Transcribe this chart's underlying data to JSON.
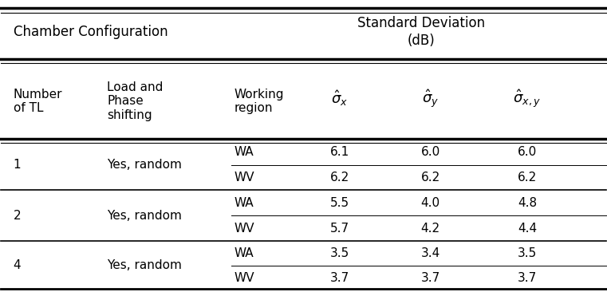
{
  "title_left": "Chamber Configuration",
  "title_right": "Standard Deviation\n(dB)",
  "col_headers_0": "Number\nof TL",
  "col_headers_1": "Load and\nPhase\nshifting",
  "col_headers_2": "Working\nregion",
  "col_headers_3": "$\\hat{\\sigma}_x$",
  "col_headers_4": "$\\hat{\\sigma}_y$",
  "col_headers_5": "$\\hat{\\sigma}_{x,y}$",
  "rows": [
    [
      "1",
      "Yes, random",
      "WA",
      "6.1",
      "6.0",
      "6.0"
    ],
    [
      "1",
      "Yes, random",
      "WV",
      "6.2",
      "6.2",
      "6.2"
    ],
    [
      "2",
      "Yes, random",
      "WA",
      "5.5",
      "4.0",
      "4.8"
    ],
    [
      "2",
      "Yes, random",
      "WV",
      "5.7",
      "4.2",
      "4.4"
    ],
    [
      "4",
      "Yes, random",
      "WA",
      "3.5",
      "3.4",
      "3.5"
    ],
    [
      "4",
      "Yes, random",
      "WV",
      "3.7",
      "3.7",
      "3.7"
    ]
  ],
  "merge_col0": [
    "1",
    "2",
    "4"
  ],
  "merge_col1": [
    "Yes, random",
    "Yes, random",
    "Yes, random"
  ],
  "bg_color": "#ffffff",
  "text_color": "#000000",
  "line_color": "#000000",
  "fontsize": 11
}
